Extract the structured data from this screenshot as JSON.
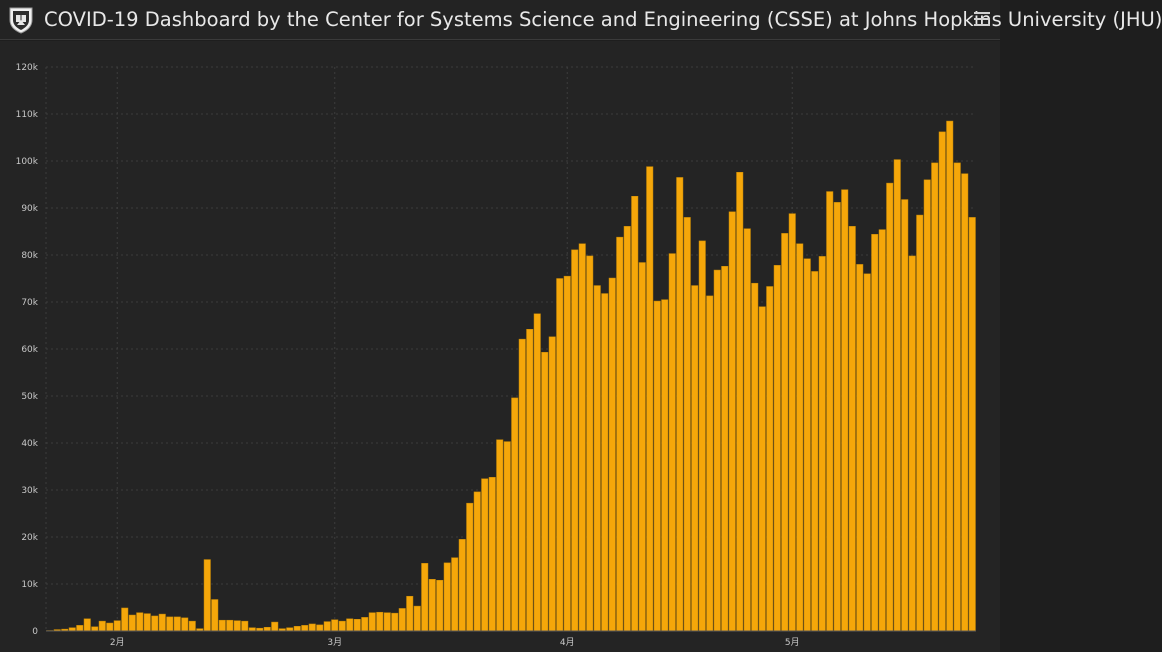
{
  "header": {
    "title": "COVID-19 Dashboard by the Center for Systems Science and Engineering (CSSE) at Johns Hopkins University (JHU)",
    "menu_icon": "hamburger-menu-icon",
    "logo_icon": "jhu-shield-icon"
  },
  "colors": {
    "bar": "#f5a70a",
    "bar_edge": "#c98a05",
    "background": "#242424",
    "grid": "#3d3d3d",
    "text": "#c8c8c8"
  },
  "chart_data": {
    "type": "bar",
    "title": "",
    "xlabel": "",
    "ylabel": "",
    "ylim": [
      0,
      120000
    ],
    "yticks": [
      0,
      10000,
      20000,
      30000,
      40000,
      50000,
      60000,
      70000,
      80000,
      90000,
      100000,
      110000,
      120000
    ],
    "ytick_labels": [
      "0",
      "10k",
      "20k",
      "30k",
      "40k",
      "50k",
      "60k",
      "70k",
      "80k",
      "90k",
      "100k",
      "110k",
      "120k"
    ],
    "x_month_ticks": [
      {
        "label": "2月",
        "index": 9
      },
      {
        "label": "3月",
        "index": 38
      },
      {
        "label": "4月",
        "index": 69
      },
      {
        "label": "5月",
        "index": 99
      }
    ],
    "grid": true,
    "legend": "none",
    "values": [
      100,
      300,
      400,
      700,
      1200,
      2600,
      900,
      2100,
      1700,
      2200,
      4900,
      3400,
      3900,
      3700,
      3200,
      3600,
      3000,
      3000,
      2800,
      2100,
      500,
      15200,
      6700,
      2300,
      2300,
      2200,
      2100,
      700,
      600,
      800,
      1900,
      500,
      700,
      1000,
      1200,
      1500,
      1300,
      2000,
      2400,
      2100,
      2600,
      2500,
      2900,
      3900,
      4000,
      3900,
      3800,
      4800,
      7400,
      5300,
      14400,
      11000,
      10800,
      14500,
      15600,
      19500,
      27200,
      29600,
      32400,
      32700,
      40700,
      40300,
      49600,
      62100,
      64200,
      67500,
      59300,
      62600,
      75000,
      75500,
      81100,
      82400,
      79800,
      73500,
      71800,
      75100,
      83800,
      86100,
      92500,
      78400,
      98800,
      70200,
      70500,
      80300,
      96500,
      88000,
      73500,
      83000,
      71300,
      76800,
      77600,
      89200,
      97600,
      85600,
      74000,
      69000,
      73300,
      77800,
      84600,
      88800,
      82400,
      79200,
      76500,
      79700,
      93500,
      91200,
      93900,
      86100,
      78000,
      76000,
      84400,
      85400,
      95300,
      100300,
      91800,
      79800,
      88500,
      96000,
      99600,
      106200,
      108500,
      99600,
      97300,
      88000
    ]
  }
}
